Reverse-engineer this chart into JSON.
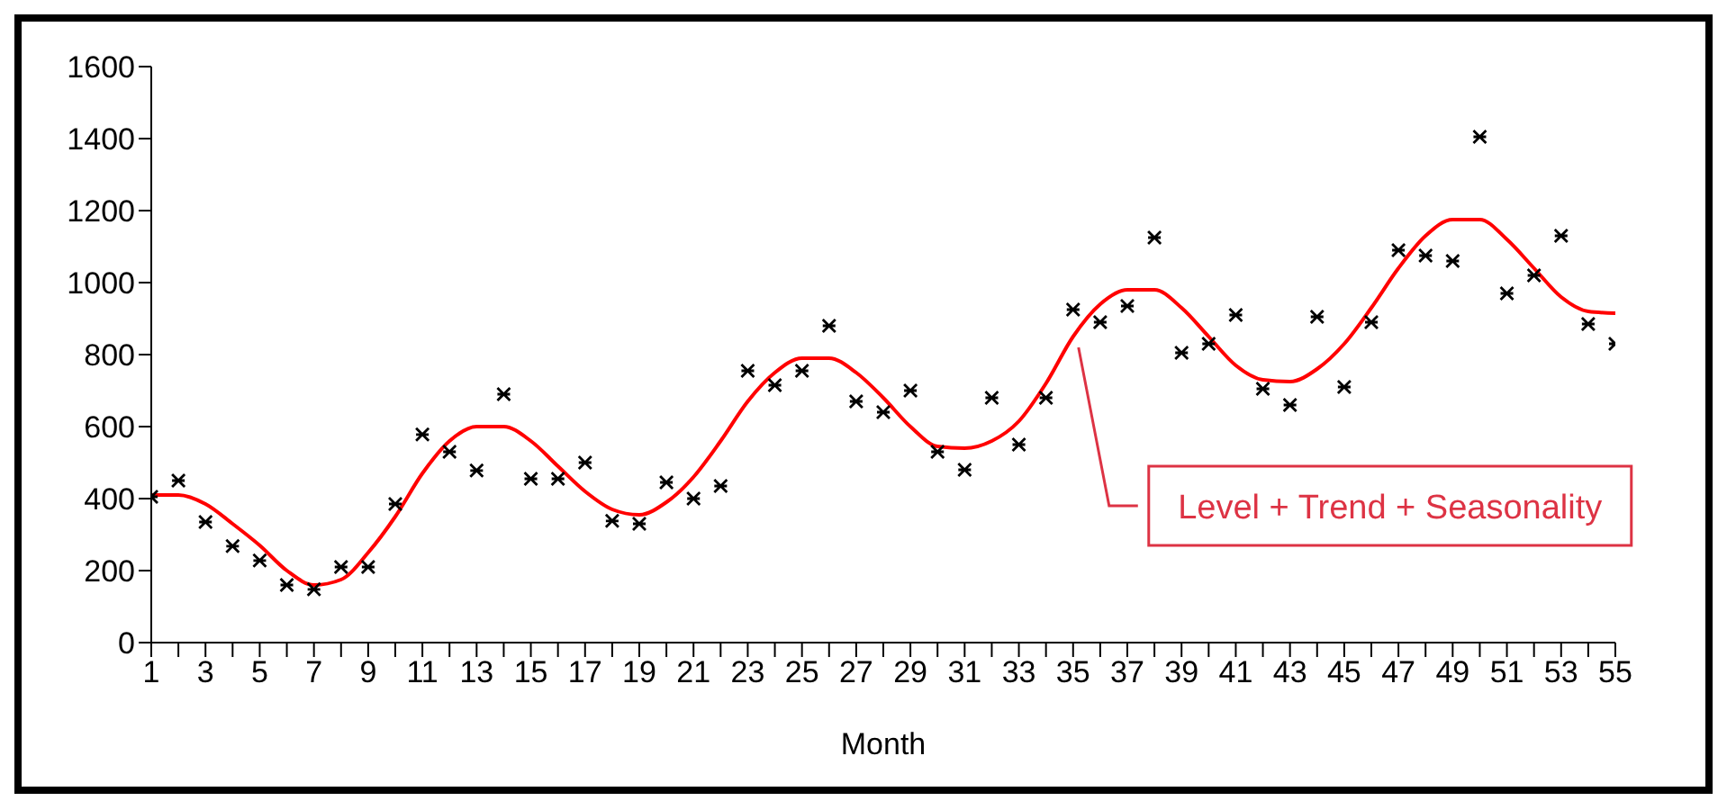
{
  "chart_data": {
    "type": "scatter",
    "xlabel": "Month",
    "x": [
      1,
      2,
      3,
      4,
      5,
      6,
      7,
      8,
      9,
      10,
      11,
      12,
      13,
      14,
      15,
      16,
      17,
      18,
      19,
      20,
      21,
      22,
      23,
      24,
      25,
      26,
      27,
      28,
      29,
      30,
      31,
      32,
      33,
      34,
      35,
      36,
      37,
      38,
      39,
      40,
      41,
      42,
      43,
      44,
      45,
      46,
      47,
      48,
      49,
      50,
      51,
      52,
      53,
      54,
      55
    ],
    "series": [
      {
        "color": "#000000",
        "marker": "cross",
        "values": [
          405,
          450,
          335,
          268,
          228,
          160,
          148,
          210,
          210,
          385,
          578,
          530,
          478,
          690,
          455,
          455,
          500,
          338,
          330,
          445,
          400,
          435,
          755,
          715,
          755,
          880,
          670,
          640,
          700,
          530,
          480,
          680,
          550,
          680,
          925,
          890,
          935,
          1125,
          805,
          830,
          910,
          705,
          660,
          905,
          710,
          890,
          1090,
          1075,
          1060,
          1405,
          970,
          1020,
          1130,
          885,
          830
        ]
      },
      {
        "type": "line",
        "color": "#ff0000",
        "values": [
          410,
          410,
          385,
          330,
          270,
          200,
          160,
          175,
          250,
          350,
          470,
          560,
          600,
          600,
          560,
          490,
          420,
          370,
          355,
          390,
          460,
          560,
          670,
          750,
          790,
          790,
          750,
          680,
          600,
          545,
          540,
          560,
          615,
          720,
          850,
          940,
          980,
          980,
          930,
          850,
          770,
          730,
          725,
          760,
          830,
          930,
          1040,
          1130,
          1175,
          1175,
          1120,
          1040,
          960,
          920,
          915
        ]
      }
    ],
    "xlim": [
      1,
      55
    ],
    "xticks": [
      1,
      {
        "value": 2,
        "label": null
      },
      3,
      {
        "value": 4,
        "label": null
      },
      5,
      {
        "value": 6,
        "label": null
      },
      7,
      {
        "value": 8,
        "label": null
      },
      9,
      {
        "value": 10,
        "label": null
      },
      11,
      {
        "value": 12,
        "label": null
      },
      13,
      {
        "value": 14,
        "label": null
      },
      15,
      {
        "value": 16,
        "label": null
      },
      17,
      {
        "value": 18,
        "label": null
      },
      19,
      {
        "value": 20,
        "label": null
      },
      21,
      {
        "value": 22,
        "label": null
      },
      23,
      {
        "value": 24,
        "label": null
      },
      25,
      {
        "value": 26,
        "label": null
      },
      27,
      {
        "value": 28,
        "label": null
      },
      29,
      {
        "value": 30,
        "label": null
      },
      31,
      {
        "value": 32,
        "label": null
      },
      33,
      {
        "value": 34,
        "label": null
      },
      35,
      {
        "value": 36,
        "label": null
      },
      37,
      {
        "value": 38,
        "label": null
      },
      39,
      {
        "value": 40,
        "label": null
      },
      41,
      {
        "value": 42,
        "label": null
      },
      43,
      {
        "value": 44,
        "label": null
      },
      45,
      {
        "value": 46,
        "label": null
      },
      47,
      {
        "value": 48,
        "label": null
      },
      49,
      {
        "value": 50,
        "label": null
      },
      51,
      {
        "value": 52,
        "label": null
      },
      53,
      {
        "value": 54,
        "label": null
      },
      55
    ],
    "ylim": [
      0,
      1600
    ],
    "yticks": [
      0,
      200,
      400,
      600,
      800,
      1000,
      1200,
      1400,
      1600
    ],
    "grid": false,
    "legend": false,
    "annotations": [
      {
        "text": "Level + Trend + Seasonality",
        "x": 35,
        "y": 850
      }
    ]
  }
}
